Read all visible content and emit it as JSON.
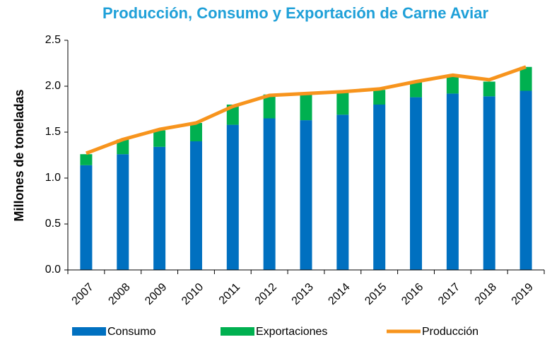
{
  "chart_data": {
    "type": "bar",
    "stacked": true,
    "title": "Producción, Consumo y Exportación de Carne Aviar",
    "y_label": "Millones de toneladas",
    "categories": [
      "2007",
      "2008",
      "2009",
      "2010",
      "2011",
      "2012",
      "2013",
      "2014",
      "2015",
      "2016",
      "2017",
      "2018",
      "2019"
    ],
    "series": [
      {
        "name": "Consumo",
        "type": "bar",
        "color": "#0070c0",
        "values": [
          1.14,
          1.26,
          1.34,
          1.4,
          1.58,
          1.65,
          1.63,
          1.69,
          1.8,
          1.88,
          1.92,
          1.89,
          1.95
        ]
      },
      {
        "name": "Exportaciones",
        "type": "bar",
        "color": "#00b050",
        "values": [
          0.12,
          0.16,
          0.18,
          0.2,
          0.22,
          0.26,
          0.28,
          0.24,
          0.16,
          0.17,
          0.19,
          0.16,
          0.26
        ]
      },
      {
        "name": "Producción",
        "type": "line",
        "color": "#f7941d",
        "values": [
          1.27,
          1.42,
          1.53,
          1.6,
          1.78,
          1.9,
          1.92,
          1.94,
          1.97,
          2.05,
          2.12,
          2.07,
          2.21
        ]
      }
    ],
    "ylim": [
      0,
      2.5
    ],
    "yticks": [
      {
        "value": 0,
        "label": "0.0"
      },
      0.5,
      {
        "value": 1,
        "label": "1.0"
      },
      1.5,
      {
        "value": 2,
        "label": "2.0"
      },
      2.5
    ],
    "grid": false,
    "legend": "bottom"
  }
}
